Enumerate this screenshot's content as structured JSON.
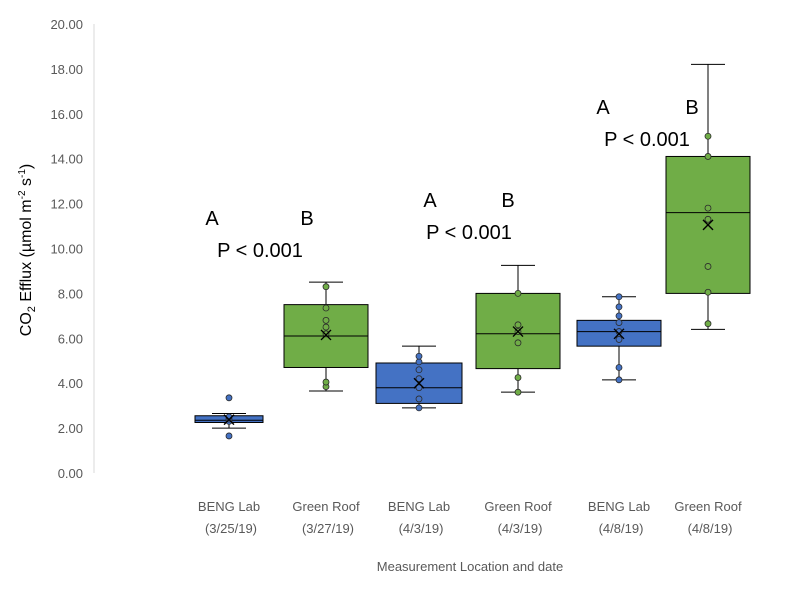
{
  "chart_data": {
    "type": "box",
    "xlabel": "Measurement Location and date",
    "ylabel": {
      "prefix": "CO",
      "sub": "2",
      "mid": " Efflux (µmol m",
      "sup1": "-2",
      "mid2": " s",
      "sup2": "-1",
      "end": ")"
    },
    "ylim": [
      0,
      20
    ],
    "yticks": [
      "0.00",
      "2.00",
      "4.00",
      "6.00",
      "8.00",
      "10.00",
      "12.00",
      "14.00",
      "16.00",
      "18.00",
      "20.00"
    ],
    "grid": false,
    "colors": {
      "blue": "#4472C4",
      "green": "#70AD47",
      "axis": "#d9d9d9",
      "text": "#595959"
    },
    "boxes": [
      {
        "name": "BENG Lab",
        "date": "(3/25/19)",
        "color": "blue",
        "min": 2.0,
        "q1": 2.25,
        "median": 2.35,
        "q3": 2.55,
        "max": 2.65,
        "mean": 2.38,
        "points": [
          1.65,
          2.3,
          2.4,
          2.5,
          3.35
        ]
      },
      {
        "name": "Green Roof",
        "date": "(3/27/19)",
        "color": "green",
        "min": 3.65,
        "q1": 4.7,
        "median": 6.1,
        "q3": 7.5,
        "max": 8.5,
        "mean": 6.15,
        "points": [
          3.85,
          4.05,
          6.2,
          6.5,
          6.8,
          7.35,
          8.3
        ]
      },
      {
        "name": "BENG Lab",
        "date": "(4/3/19)",
        "color": "blue",
        "min": 2.9,
        "q1": 3.1,
        "median": 3.8,
        "q3": 4.9,
        "max": 5.65,
        "mean": 4.0,
        "points": [
          2.9,
          3.3,
          3.8,
          4.2,
          4.6,
          4.95,
          5.2
        ]
      },
      {
        "name": "Green Roof",
        "date": "(4/3/19)",
        "color": "green",
        "min": 3.6,
        "q1": 4.65,
        "median": 6.2,
        "q3": 8.0,
        "max": 9.25,
        "mean": 6.3,
        "points": [
          3.6,
          4.25,
          5.8,
          6.3,
          6.6,
          8.0
        ]
      },
      {
        "name": "BENG Lab",
        "date": "(4/8/19)",
        "color": "blue",
        "min": 4.15,
        "q1": 5.65,
        "median": 6.3,
        "q3": 6.8,
        "max": 7.85,
        "mean": 6.2,
        "points": [
          4.15,
          4.7,
          5.95,
          6.3,
          6.7,
          7.0,
          7.4,
          7.85
        ]
      },
      {
        "name": "Green Roof",
        "date": "(4/8/19)",
        "color": "green",
        "min": 6.4,
        "q1": 8.0,
        "median": 11.6,
        "q3": 14.1,
        "max": 18.2,
        "mean": 11.05,
        "points": [
          6.65,
          8.05,
          9.2,
          11.3,
          11.8,
          14.1,
          15.0
        ]
      }
    ],
    "annotations": [
      {
        "group": 0,
        "labels": [
          "A",
          "B"
        ],
        "pvalue": "P < 0.001"
      },
      {
        "group": 1,
        "labels": [
          "A",
          "B"
        ],
        "pvalue": "P < 0.001"
      },
      {
        "group": 2,
        "labels": [
          "A",
          "B"
        ],
        "pvalue": "P < 0.001"
      }
    ]
  }
}
